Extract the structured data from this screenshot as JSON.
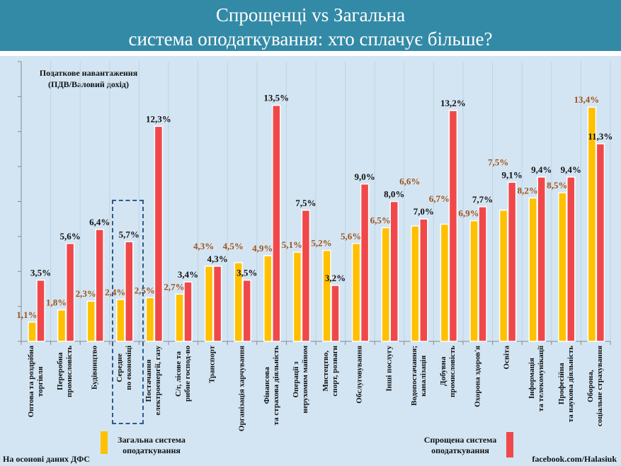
{
  "title": [
    "Спрощенці vs Загальна",
    "система оподаткування: хто сплачує більше?"
  ],
  "source": "На осонові  даних ДФС",
  "credit": "facebook.com/Halasiuk",
  "colors": {
    "general": "#ffc000",
    "simplified": "#f0484a",
    "general_label": "#a0521a",
    "simplified_label": "#111111",
    "header": "#338aa6",
    "background": "#d3e5f3",
    "highlight_box": "#2d5a8a"
  },
  "chart_data": {
    "type": "bar",
    "ylabel": [
      "Податкове навантаження",
      "(ПДВ/Валовий дохід)"
    ],
    "ylim": [
      0,
      16
    ],
    "grid": "vertical category separators",
    "legend": "bottom",
    "highlighted_category": "Середне по економіці",
    "categories": [
      [
        "Оптова та роздрібна",
        "торгівля"
      ],
      [
        "Переробна",
        "промисловість"
      ],
      [
        "Будівництво"
      ],
      [
        "Середне",
        "по економіці"
      ],
      [
        "Постачання",
        "електроенергії, газу"
      ],
      [
        "С/г, лісове та",
        "рибне господ-во"
      ],
      [
        "Транспорт"
      ],
      [
        "Організація харчування"
      ],
      [
        "Фінансова",
        "та страхова діяльність"
      ],
      [
        "Операції з",
        "нерухомим майном"
      ],
      [
        "Мистецтво,",
        "спорт, розваги"
      ],
      [
        "Обслуговування"
      ],
      [
        "Інші послугу"
      ],
      [
        "Водопостачання;",
        "каналізація"
      ],
      [
        "Добувна",
        "промисловість"
      ],
      [
        "Охорона здоров'я"
      ],
      [
        "Освіта"
      ],
      [
        "Інформація",
        "та телекомунікації"
      ],
      [
        "Професійна",
        "та наукова діяльність"
      ],
      [
        "Оборона,",
        "соціальне страхування"
      ]
    ],
    "series": [
      {
        "name": "Загальна система оподаткування",
        "legend": [
          "Загальна система",
          "оподаткування"
        ],
        "values": [
          1.1,
          1.8,
          2.3,
          2.4,
          2.5,
          2.7,
          4.3,
          4.5,
          4.9,
          5.1,
          5.2,
          5.6,
          6.5,
          6.6,
          6.7,
          6.9,
          7.5,
          8.2,
          8.5,
          13.4
        ],
        "labels": [
          "1,1%",
          "1,8%",
          "2,3%",
          "2,4%",
          "2,5%",
          "2,7%",
          "4,3%",
          "4,5%",
          "4,9%",
          "5,1%",
          "5,2%",
          "5,6%",
          "6,5%",
          "6,6%",
          "6,7%",
          "6,9%",
          "7,5%",
          "8,2%",
          "8,5%",
          "13,4%"
        ]
      },
      {
        "name": "Спрощена система оподаткування",
        "legend": [
          "Спрощена система",
          "оподаткування"
        ],
        "values": [
          3.5,
          5.6,
          6.4,
          5.7,
          12.3,
          3.4,
          4.3,
          3.5,
          13.5,
          7.5,
          3.2,
          9.0,
          8.0,
          7.0,
          13.2,
          7.7,
          9.1,
          9.4,
          9.4,
          11.3
        ],
        "labels": [
          "3,5%",
          "5,6%",
          "6,4%",
          "5,7%",
          "12,3%",
          "3,4%",
          "4,3%",
          "3,5%",
          "13,5%",
          "7,5%",
          "3,2%",
          "9,0%",
          "8,0%",
          "7,0%",
          "13,2%",
          "7,7%",
          "9,1%",
          "9,4%",
          "9,4%",
          "11,3%"
        ]
      }
    ]
  }
}
